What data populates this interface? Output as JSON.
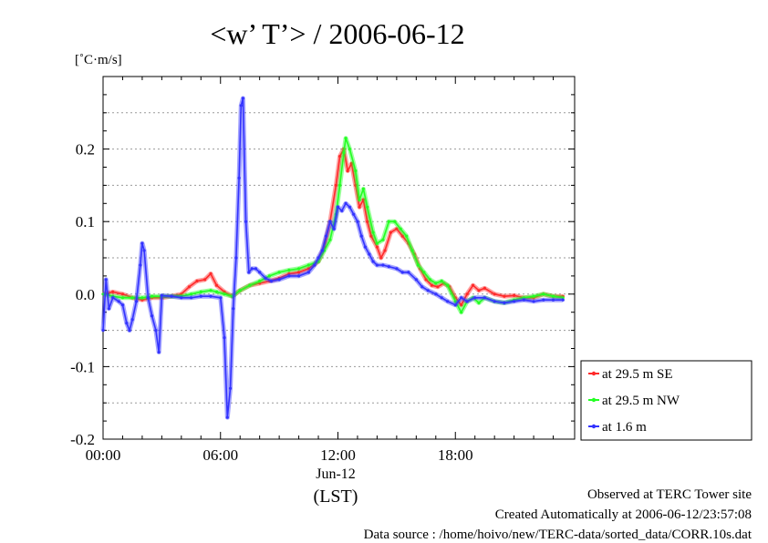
{
  "chart_data": {
    "type": "line",
    "title": "<w’ T’> / 2006-06-12",
    "ylabel": "[˚C·m/s]",
    "xlabel": "(LST)",
    "x_sublabel": "Jun-12",
    "x_unit": "hours LST",
    "xlim": [
      0,
      24
    ],
    "ylim": [
      -0.2,
      0.3
    ],
    "x_ticks": [
      {
        "value": 0,
        "label": "00:00"
      },
      {
        "value": 6,
        "label": "06:00"
      },
      {
        "value": 12,
        "label": "12:00"
      },
      {
        "value": 18,
        "label": "18:00"
      }
    ],
    "y_ticks": [
      {
        "value": -0.2,
        "label": "-0.2"
      },
      {
        "value": -0.1,
        "label": "-0.1"
      },
      {
        "value": 0.0,
        "label": "0.0"
      },
      {
        "value": 0.1,
        "label": "0.1"
      },
      {
        "value": 0.2,
        "label": "0.2"
      }
    ],
    "grid": "horizontal dotted",
    "legend_position": "right, outside lower",
    "series": [
      {
        "name": "at 29.5 m SE",
        "color": "#ff2a2a",
        "points": [
          [
            0.0,
            0.0
          ],
          [
            0.5,
            0.003
          ],
          [
            1.0,
            0.0
          ],
          [
            1.5,
            -0.005
          ],
          [
            2.0,
            -0.008
          ],
          [
            2.5,
            -0.005
          ],
          [
            3.0,
            -0.005
          ],
          [
            3.5,
            -0.003
          ],
          [
            4.0,
            0.0
          ],
          [
            4.4,
            0.01
          ],
          [
            4.8,
            0.018
          ],
          [
            5.2,
            0.02
          ],
          [
            5.5,
            0.028
          ],
          [
            5.8,
            0.012
          ],
          [
            6.2,
            0.003
          ],
          [
            6.6,
            -0.003
          ],
          [
            7.0,
            0.005
          ],
          [
            7.5,
            0.012
          ],
          [
            8.0,
            0.015
          ],
          [
            8.5,
            0.018
          ],
          [
            9.0,
            0.022
          ],
          [
            9.5,
            0.028
          ],
          [
            10.0,
            0.03
          ],
          [
            10.5,
            0.035
          ],
          [
            11.0,
            0.045
          ],
          [
            11.3,
            0.065
          ],
          [
            11.6,
            0.1
          ],
          [
            11.9,
            0.15
          ],
          [
            12.1,
            0.19
          ],
          [
            12.3,
            0.2
          ],
          [
            12.5,
            0.17
          ],
          [
            12.7,
            0.18
          ],
          [
            12.9,
            0.15
          ],
          [
            13.1,
            0.12
          ],
          [
            13.3,
            0.13
          ],
          [
            13.5,
            0.1
          ],
          [
            13.7,
            0.08
          ],
          [
            14.0,
            0.065
          ],
          [
            14.2,
            0.05
          ],
          [
            14.4,
            0.06
          ],
          [
            14.7,
            0.085
          ],
          [
            15.0,
            0.09
          ],
          [
            15.3,
            0.08
          ],
          [
            15.6,
            0.07
          ],
          [
            15.9,
            0.055
          ],
          [
            16.2,
            0.035
          ],
          [
            16.5,
            0.02
          ],
          [
            16.8,
            0.012
          ],
          [
            17.1,
            0.01
          ],
          [
            17.4,
            0.015
          ],
          [
            17.7,
            0.01
          ],
          [
            18.0,
            -0.005
          ],
          [
            18.3,
            -0.015
          ],
          [
            18.6,
            0.0
          ],
          [
            18.9,
            0.012
          ],
          [
            19.2,
            0.005
          ],
          [
            19.5,
            0.008
          ],
          [
            20.0,
            0.0
          ],
          [
            20.5,
            -0.003
          ],
          [
            21.0,
            -0.002
          ],
          [
            21.5,
            -0.005
          ],
          [
            22.0,
            -0.005
          ],
          [
            22.5,
            0.0
          ],
          [
            23.0,
            -0.003
          ],
          [
            23.5,
            -0.003
          ]
        ]
      },
      {
        "name": "at 29.5 m NW",
        "color": "#22ff22",
        "points": [
          [
            0.0,
            0.0
          ],
          [
            0.5,
            -0.003
          ],
          [
            1.0,
            -0.005
          ],
          [
            1.5,
            -0.005
          ],
          [
            2.0,
            -0.005
          ],
          [
            2.5,
            -0.003
          ],
          [
            3.0,
            -0.003
          ],
          [
            3.5,
            -0.003
          ],
          [
            4.0,
            -0.003
          ],
          [
            4.5,
            0.0
          ],
          [
            5.0,
            0.003
          ],
          [
            5.5,
            0.005
          ],
          [
            5.8,
            0.003
          ],
          [
            6.2,
            0.0
          ],
          [
            6.6,
            -0.003
          ],
          [
            7.0,
            0.005
          ],
          [
            7.5,
            0.012
          ],
          [
            8.0,
            0.018
          ],
          [
            8.5,
            0.025
          ],
          [
            9.0,
            0.03
          ],
          [
            9.5,
            0.033
          ],
          [
            10.0,
            0.035
          ],
          [
            10.5,
            0.04
          ],
          [
            11.0,
            0.045
          ],
          [
            11.3,
            0.06
          ],
          [
            11.6,
            0.075
          ],
          [
            11.9,
            0.11
          ],
          [
            12.1,
            0.15
          ],
          [
            12.3,
            0.195
          ],
          [
            12.4,
            0.215
          ],
          [
            12.6,
            0.2
          ],
          [
            12.9,
            0.17
          ],
          [
            13.1,
            0.13
          ],
          [
            13.3,
            0.145
          ],
          [
            13.5,
            0.12
          ],
          [
            13.8,
            0.085
          ],
          [
            14.0,
            0.07
          ],
          [
            14.3,
            0.075
          ],
          [
            14.6,
            0.1
          ],
          [
            14.9,
            0.1
          ],
          [
            15.2,
            0.09
          ],
          [
            15.5,
            0.08
          ],
          [
            15.8,
            0.06
          ],
          [
            16.1,
            0.04
          ],
          [
            16.4,
            0.03
          ],
          [
            16.7,
            0.02
          ],
          [
            17.0,
            0.015
          ],
          [
            17.3,
            0.018
          ],
          [
            17.6,
            0.012
          ],
          [
            18.0,
            -0.01
          ],
          [
            18.3,
            -0.025
          ],
          [
            18.6,
            -0.01
          ],
          [
            18.9,
            -0.005
          ],
          [
            19.2,
            -0.012
          ],
          [
            19.5,
            -0.005
          ],
          [
            20.0,
            -0.01
          ],
          [
            20.5,
            -0.012
          ],
          [
            21.0,
            -0.008
          ],
          [
            21.5,
            -0.005
          ],
          [
            22.0,
            -0.003
          ],
          [
            22.5,
            0.0
          ],
          [
            23.0,
            -0.003
          ],
          [
            23.5,
            -0.005
          ]
        ]
      },
      {
        "name": "at 1.6 m",
        "color": "#3333ff",
        "points": [
          [
            0.0,
            -0.05
          ],
          [
            0.15,
            0.02
          ],
          [
            0.3,
            -0.02
          ],
          [
            0.5,
            -0.005
          ],
          [
            0.8,
            -0.01
          ],
          [
            1.0,
            -0.015
          ],
          [
            1.2,
            -0.04
          ],
          [
            1.35,
            -0.05
          ],
          [
            1.5,
            -0.035
          ],
          [
            1.7,
            -0.01
          ],
          [
            1.9,
            0.04
          ],
          [
            2.0,
            0.07
          ],
          [
            2.1,
            0.06
          ],
          [
            2.3,
            -0.005
          ],
          [
            2.5,
            -0.03
          ],
          [
            2.7,
            -0.05
          ],
          [
            2.85,
            -0.08
          ],
          [
            3.0,
            -0.002
          ],
          [
            3.5,
            -0.003
          ],
          [
            4.0,
            -0.005
          ],
          [
            4.5,
            -0.005
          ],
          [
            5.0,
            -0.003
          ],
          [
            5.5,
            -0.003
          ],
          [
            6.0,
            -0.005
          ],
          [
            6.2,
            -0.06
          ],
          [
            6.35,
            -0.17
          ],
          [
            6.5,
            -0.13
          ],
          [
            6.65,
            -0.02
          ],
          [
            6.8,
            0.05
          ],
          [
            6.95,
            0.16
          ],
          [
            7.05,
            0.26
          ],
          [
            7.15,
            0.27
          ],
          [
            7.3,
            0.1
          ],
          [
            7.45,
            0.03
          ],
          [
            7.6,
            0.035
          ],
          [
            7.8,
            0.035
          ],
          [
            8.0,
            0.03
          ],
          [
            8.3,
            0.022
          ],
          [
            8.6,
            0.018
          ],
          [
            9.0,
            0.02
          ],
          [
            9.5,
            0.025
          ],
          [
            10.0,
            0.025
          ],
          [
            10.5,
            0.03
          ],
          [
            10.8,
            0.04
          ],
          [
            11.0,
            0.05
          ],
          [
            11.2,
            0.06
          ],
          [
            11.4,
            0.08
          ],
          [
            11.6,
            0.1
          ],
          [
            11.8,
            0.09
          ],
          [
            12.0,
            0.12
          ],
          [
            12.2,
            0.115
          ],
          [
            12.4,
            0.125
          ],
          [
            12.6,
            0.12
          ],
          [
            12.8,
            0.11
          ],
          [
            13.0,
            0.1
          ],
          [
            13.2,
            0.08
          ],
          [
            13.4,
            0.065
          ],
          [
            13.6,
            0.055
          ],
          [
            13.8,
            0.045
          ],
          [
            14.0,
            0.04
          ],
          [
            14.3,
            0.04
          ],
          [
            14.6,
            0.038
          ],
          [
            15.0,
            0.035
          ],
          [
            15.3,
            0.03
          ],
          [
            15.6,
            0.03
          ],
          [
            16.0,
            0.02
          ],
          [
            16.3,
            0.01
          ],
          [
            16.6,
            0.005
          ],
          [
            17.0,
            0.0
          ],
          [
            17.3,
            -0.005
          ],
          [
            17.6,
            -0.01
          ],
          [
            18.0,
            -0.015
          ],
          [
            18.3,
            -0.005
          ],
          [
            18.6,
            -0.01
          ],
          [
            19.0,
            -0.005
          ],
          [
            19.5,
            -0.005
          ],
          [
            20.0,
            -0.01
          ],
          [
            20.5,
            -0.012
          ],
          [
            21.0,
            -0.01
          ],
          [
            21.5,
            -0.008
          ],
          [
            22.0,
            -0.01
          ],
          [
            22.5,
            -0.008
          ],
          [
            23.0,
            -0.008
          ],
          [
            23.5,
            -0.008
          ]
        ]
      }
    ]
  },
  "footer": {
    "line1": "Observed at TERC Tower site",
    "line2": "Created Automatically at 2006-06-12/23:57:08",
    "line3": "Data source : /home/hoivo/new/TERC-data/sorted_data/CORR.10s.dat"
  }
}
